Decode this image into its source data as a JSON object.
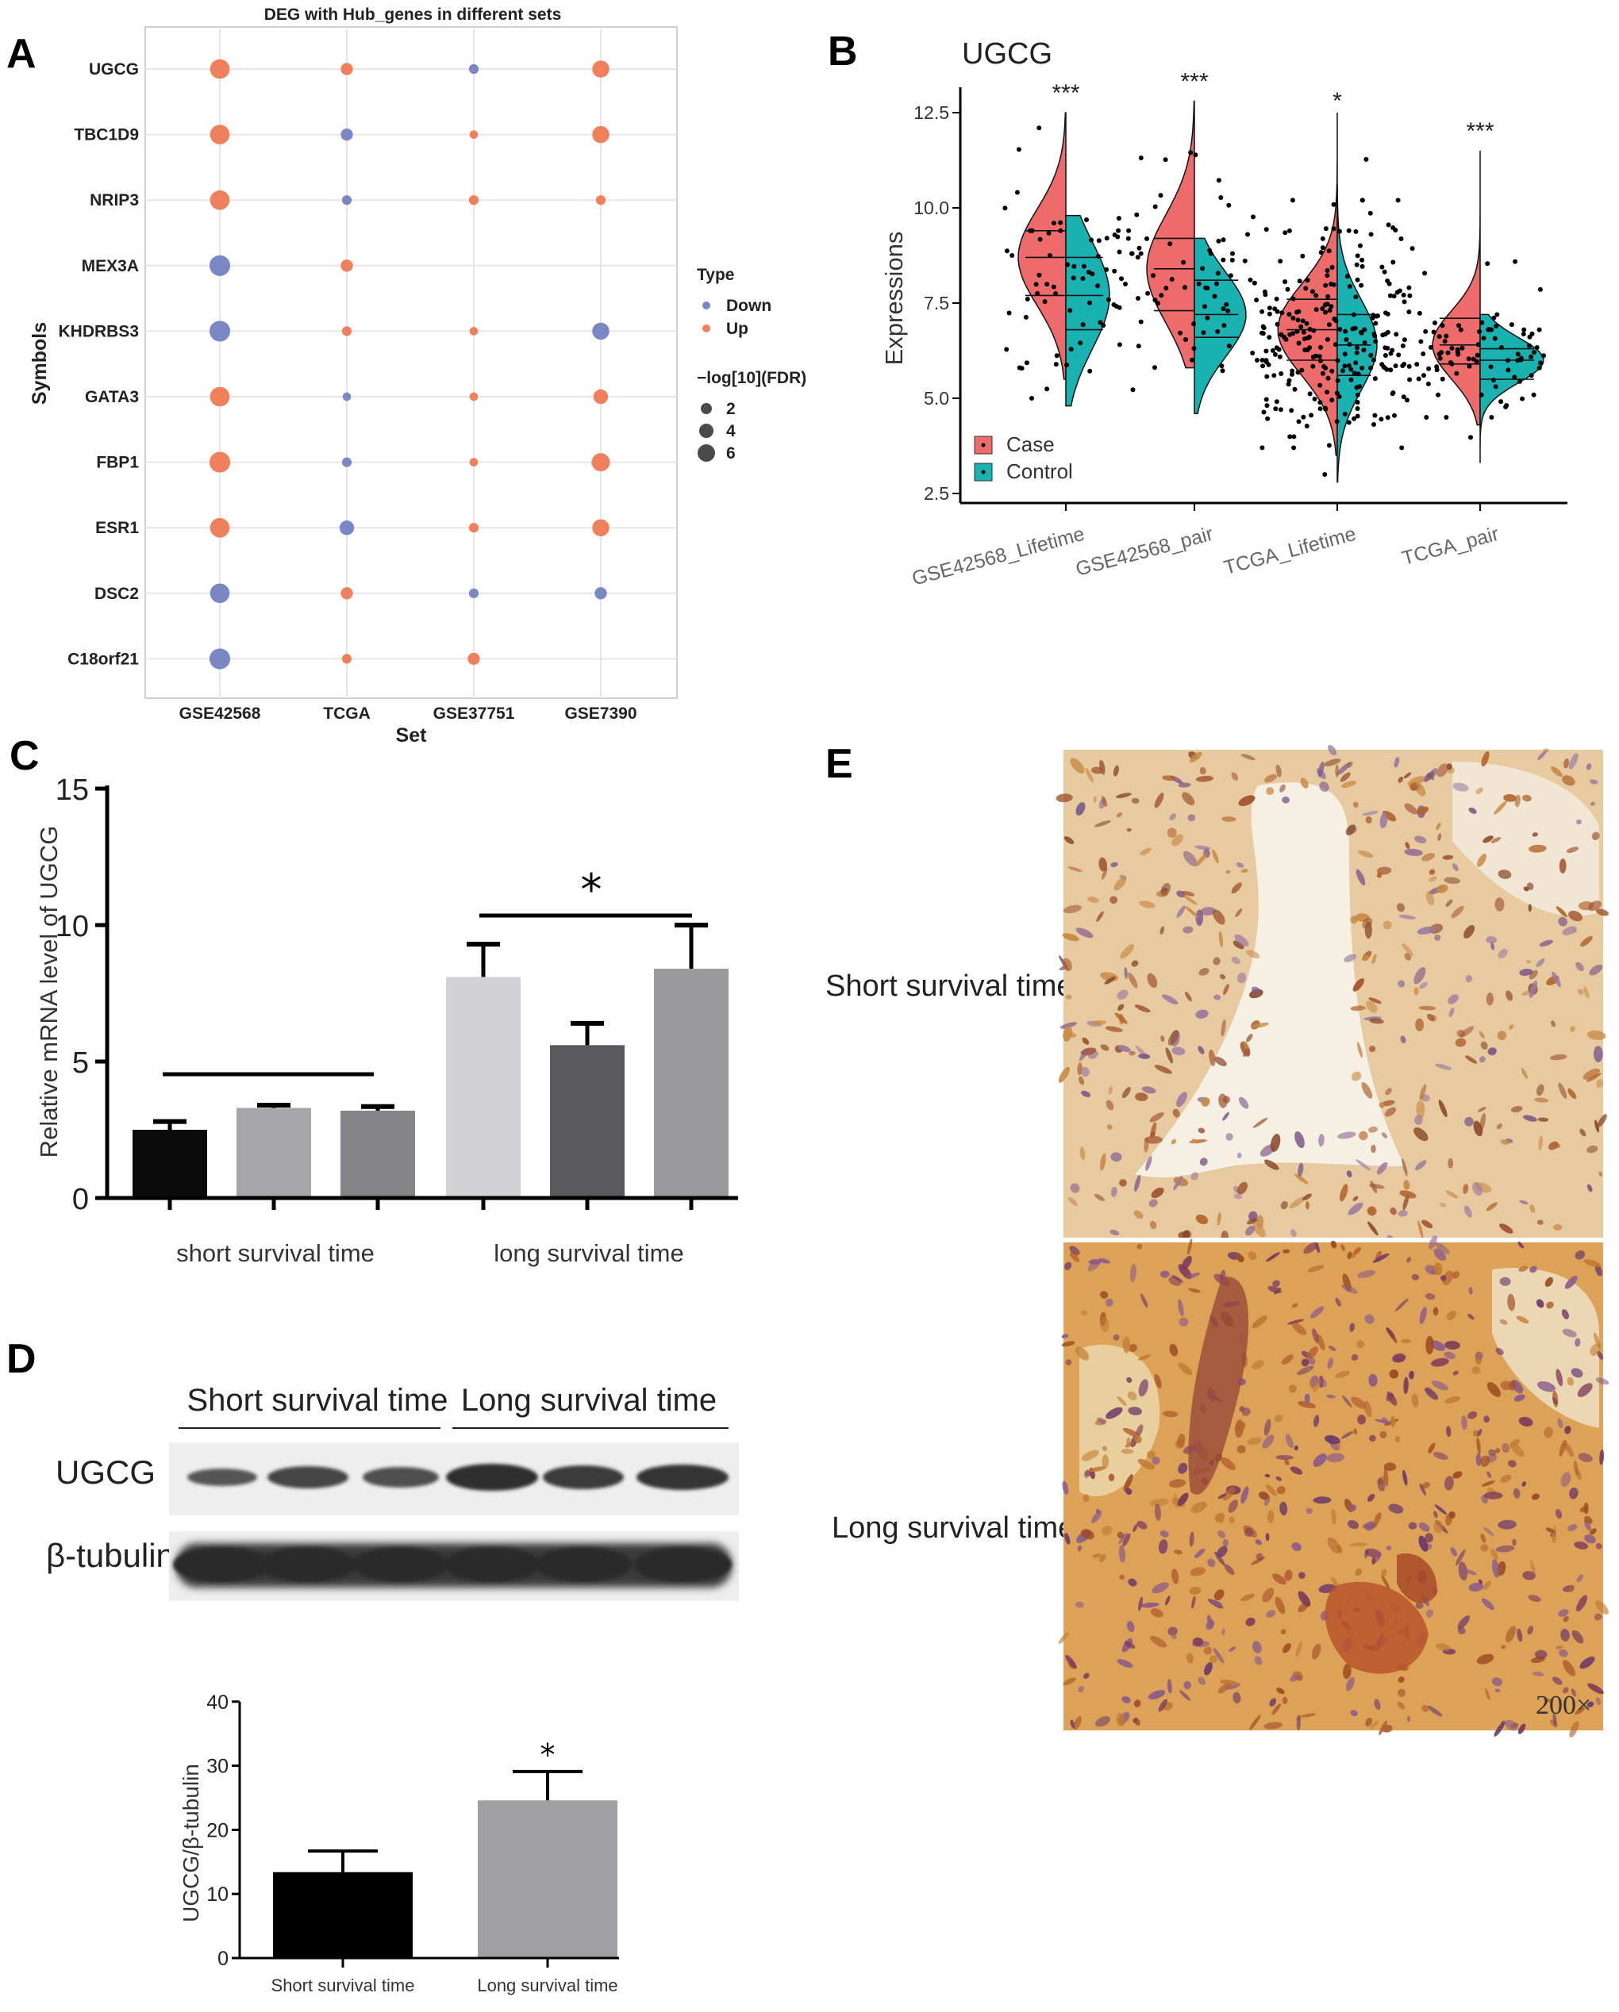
{
  "panels": {
    "A": "A",
    "B": "B",
    "C": "C",
    "D": "D",
    "E": "E"
  },
  "chart_data": [
    {
      "panel": "A",
      "type": "scatter",
      "title": "DEG with Hub_genes in different sets",
      "xlabel": "Set",
      "ylabel": "Symbols",
      "x_categories": [
        "GSE42568",
        "TCGA",
        "GSE37751",
        "GSE7390"
      ],
      "y_categories": [
        "UGCG",
        "TBC1D9",
        "NRIP3",
        "MEX3A",
        "KHDRBS3",
        "GATA3",
        "FBP1",
        "ESR1",
        "DSC2",
        "C18orf21"
      ],
      "legend_type_title": "Type",
      "legend_type": [
        {
          "label": "Down",
          "color": "#7b86c4"
        },
        {
          "label": "Up",
          "color": "#f07f5c"
        }
      ],
      "legend_size_title": "−log[10](FDR)",
      "legend_size": [
        2,
        4,
        6
      ],
      "grid": true,
      "points": [
        {
          "gene": "UGCG",
          "set": "GSE42568",
          "type": "Up",
          "size": 6
        },
        {
          "gene": "UGCG",
          "set": "TCGA",
          "type": "Up",
          "size": 3
        },
        {
          "gene": "UGCG",
          "set": "GSE37751",
          "type": "Down",
          "size": 2
        },
        {
          "gene": "UGCG",
          "set": "GSE7390",
          "type": "Up",
          "size": 5
        },
        {
          "gene": "TBC1D9",
          "set": "GSE42568",
          "type": "Up",
          "size": 6
        },
        {
          "gene": "TBC1D9",
          "set": "TCGA",
          "type": "Down",
          "size": 3
        },
        {
          "gene": "TBC1D9",
          "set": "GSE37751",
          "type": "Up",
          "size": 1.5
        },
        {
          "gene": "TBC1D9",
          "set": "GSE7390",
          "type": "Up",
          "size": 5
        },
        {
          "gene": "NRIP3",
          "set": "GSE42568",
          "type": "Up",
          "size": 6
        },
        {
          "gene": "NRIP3",
          "set": "TCGA",
          "type": "Down",
          "size": 2
        },
        {
          "gene": "NRIP3",
          "set": "GSE37751",
          "type": "Up",
          "size": 2
        },
        {
          "gene": "NRIP3",
          "set": "GSE7390",
          "type": "Up",
          "size": 2
        },
        {
          "gene": "MEX3A",
          "set": "GSE42568",
          "type": "Down",
          "size": 6.5
        },
        {
          "gene": "MEX3A",
          "set": "TCGA",
          "type": "Up",
          "size": 3
        },
        {
          "gene": "KHDRBS3",
          "set": "GSE42568",
          "type": "Down",
          "size": 6.5
        },
        {
          "gene": "KHDRBS3",
          "set": "TCGA",
          "type": "Up",
          "size": 2
        },
        {
          "gene": "KHDRBS3",
          "set": "GSE37751",
          "type": "Up",
          "size": 1.5
        },
        {
          "gene": "KHDRBS3",
          "set": "GSE7390",
          "type": "Down",
          "size": 5
        },
        {
          "gene": "GATA3",
          "set": "GSE42568",
          "type": "Up",
          "size": 6
        },
        {
          "gene": "GATA3",
          "set": "TCGA",
          "type": "Down",
          "size": 1.5
        },
        {
          "gene": "GATA3",
          "set": "GSE37751",
          "type": "Up",
          "size": 1.5
        },
        {
          "gene": "GATA3",
          "set": "GSE7390",
          "type": "Up",
          "size": 4
        },
        {
          "gene": "FBP1",
          "set": "GSE42568",
          "type": "Up",
          "size": 6.5
        },
        {
          "gene": "FBP1",
          "set": "TCGA",
          "type": "Down",
          "size": 2
        },
        {
          "gene": "FBP1",
          "set": "GSE37751",
          "type": "Up",
          "size": 1.5
        },
        {
          "gene": "FBP1",
          "set": "GSE7390",
          "type": "Up",
          "size": 5.5
        },
        {
          "gene": "ESR1",
          "set": "GSE42568",
          "type": "Up",
          "size": 6
        },
        {
          "gene": "ESR1",
          "set": "TCGA",
          "type": "Down",
          "size": 4
        },
        {
          "gene": "ESR1",
          "set": "GSE37751",
          "type": "Up",
          "size": 2
        },
        {
          "gene": "ESR1",
          "set": "GSE7390",
          "type": "Up",
          "size": 5
        },
        {
          "gene": "DSC2",
          "set": "GSE42568",
          "type": "Down",
          "size": 6
        },
        {
          "gene": "DSC2",
          "set": "TCGA",
          "type": "Up",
          "size": 3
        },
        {
          "gene": "DSC2",
          "set": "GSE37751",
          "type": "Down",
          "size": 2
        },
        {
          "gene": "DSC2",
          "set": "GSE7390",
          "type": "Down",
          "size": 3
        },
        {
          "gene": "C18orf21",
          "set": "GSE42568",
          "type": "Down",
          "size": 6.5
        },
        {
          "gene": "C18orf21",
          "set": "TCGA",
          "type": "Up",
          "size": 2
        },
        {
          "gene": "C18orf21",
          "set": "GSE37751",
          "type": "Up",
          "size": 3
        }
      ]
    },
    {
      "panel": "B",
      "type": "violin",
      "title": "UGCG",
      "xlabel": "",
      "ylabel": "Expressions",
      "ylim": [
        2.5,
        13.3
      ],
      "yticks": [
        2.5,
        5.0,
        7.5,
        10.0,
        12.5
      ],
      "ytick_labels": [
        "2.5",
        "5.0",
        "7.5",
        "10.0",
        "12.5"
      ],
      "categories": [
        "GSE42568_Lifetime",
        "GSE42568_pair",
        "TCGA_Lifetime",
        "TCGA_pair"
      ],
      "significance": [
        "***",
        "***",
        "*",
        "***"
      ],
      "legend": [
        {
          "label": "Case",
          "color": "#ee6b6b"
        },
        {
          "label": "Control",
          "color": "#19b2b0"
        }
      ],
      "series": [
        {
          "name": "Case",
          "median": [
            8.7,
            8.4,
            6.8,
            6.4
          ],
          "q1": [
            7.7,
            7.3,
            6.0,
            5.9
          ],
          "q3": [
            9.4,
            9.2,
            7.6,
            7.1
          ],
          "min": [
            5.5,
            5.8,
            3.5,
            4.3
          ],
          "max": [
            12.5,
            12.8,
            12.5,
            11.5
          ]
        },
        {
          "name": "Control",
          "median": [
            7.7,
            7.2,
            6.4,
            6.0
          ],
          "q1": [
            6.8,
            6.6,
            5.6,
            5.5
          ],
          "q3": [
            8.7,
            8.1,
            7.2,
            6.3
          ],
          "min": [
            4.8,
            4.6,
            2.8,
            3.3
          ],
          "max": [
            9.8,
            9.2,
            10.6,
            7.2
          ]
        }
      ]
    },
    {
      "panel": "C",
      "type": "bar",
      "title": "",
      "xlabel": "",
      "ylabel": "Relative mRNA level of UGCG",
      "ylim": [
        0,
        15
      ],
      "yticks": [
        0,
        5,
        10,
        15
      ],
      "group_labels": [
        "short survival time",
        "long survival time"
      ],
      "significance": "*",
      "bars": [
        {
          "value": 2.5,
          "error": 0.3,
          "color": "#0b0b0b"
        },
        {
          "value": 3.3,
          "error": 0.1,
          "color": "#a6a6aa"
        },
        {
          "value": 3.2,
          "error": 0.15,
          "color": "#858587"
        },
        {
          "value": 8.1,
          "error": 1.2,
          "color": "#d3d3d5"
        },
        {
          "value": 5.6,
          "error": 0.8,
          "color": "#5a5a5c"
        },
        {
          "value": 8.4,
          "error": 1.6,
          "color": "#9a9a9e"
        }
      ]
    },
    {
      "panel": "D",
      "type": "bar",
      "title": "",
      "xlabel": "",
      "ylabel": "UGCG/β-tubulin",
      "ylim": [
        0,
        40
      ],
      "yticks": [
        0,
        10,
        20,
        30,
        40
      ],
      "categories": [
        "Short survival time",
        "Long survival time"
      ],
      "values": [
        13.4,
        24.6
      ],
      "errors": [
        3.3,
        4.5
      ],
      "colors": [
        "#000000",
        "#a0a0a4"
      ],
      "significance": "*"
    }
  ],
  "western_blot": {
    "group_labels": [
      "Short survival time",
      "Long survival time"
    ],
    "row_labels": [
      "UGCG",
      "β-tubulin"
    ]
  },
  "histology": {
    "row_labels": [
      "Short survival time",
      "Long survival time"
    ],
    "magnification": "200×"
  }
}
